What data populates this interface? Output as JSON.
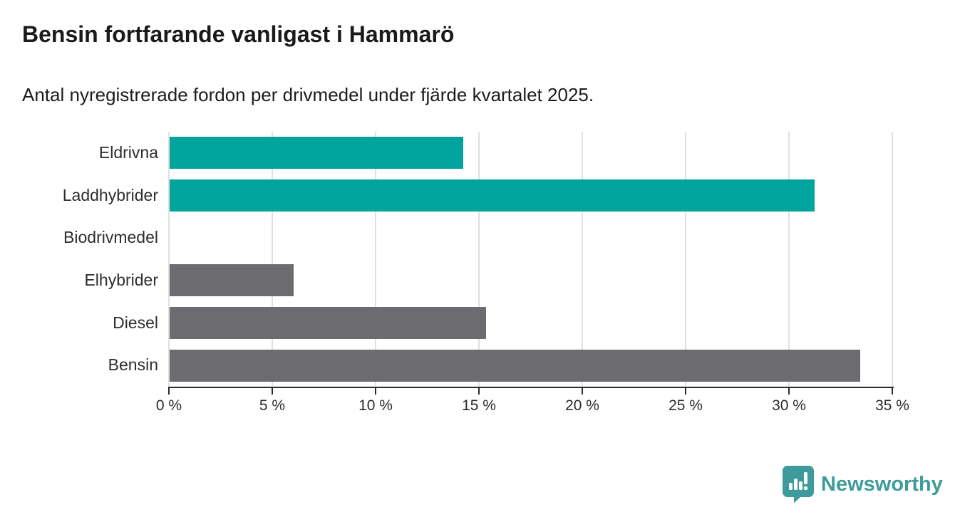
{
  "header": {
    "title": "Bensin fortfarande vanligast i Hammarö",
    "subtitle": "Antal nyregistrerade fordon per drivmedel under fjärde kvartalet 2025."
  },
  "chart_data": {
    "type": "bar",
    "orientation": "horizontal",
    "title": "Bensin fortfarande vanligast i Hammarö",
    "subtitle": "Antal nyregistrerade fordon per drivmedel under fjärde kvartalet 2025.",
    "categories": [
      "Eldrivna",
      "Laddhybrider",
      "Biodrivmedel",
      "Elhybrider",
      "Diesel",
      "Bensin"
    ],
    "values": [
      14.2,
      31.2,
      0,
      6.0,
      15.3,
      33.4
    ],
    "unit": "%",
    "xlim": [
      0,
      35
    ],
    "x_tick_values": [
      0,
      5,
      10,
      15,
      20,
      25,
      30,
      35
    ],
    "x_tick_labels": [
      "0 %",
      "5 %",
      "10 %",
      "15 %",
      "20 %",
      "25 %",
      "30 %",
      "35 %"
    ],
    "bar_colors": [
      "#00A49C",
      "#00A49C",
      "#6B6B70",
      "#6B6B70",
      "#6B6B70",
      "#6B6B70"
    ],
    "grid": true,
    "gridline_color": "#E0E0E0",
    "axis_color": "#2B2B2B",
    "legend": "none"
  },
  "branding": {
    "logo_text": "Newsworthy",
    "logo_icon": "bar-chart-speech-bubble-icon",
    "logo_color": "#3D9B9C"
  },
  "colors": {
    "background": "#FFFFFF",
    "highlight_teal": "#00A49C",
    "default_gray": "#6B6B70",
    "title_text": "#1A1A1A",
    "label_text": "#2D2D2D"
  }
}
